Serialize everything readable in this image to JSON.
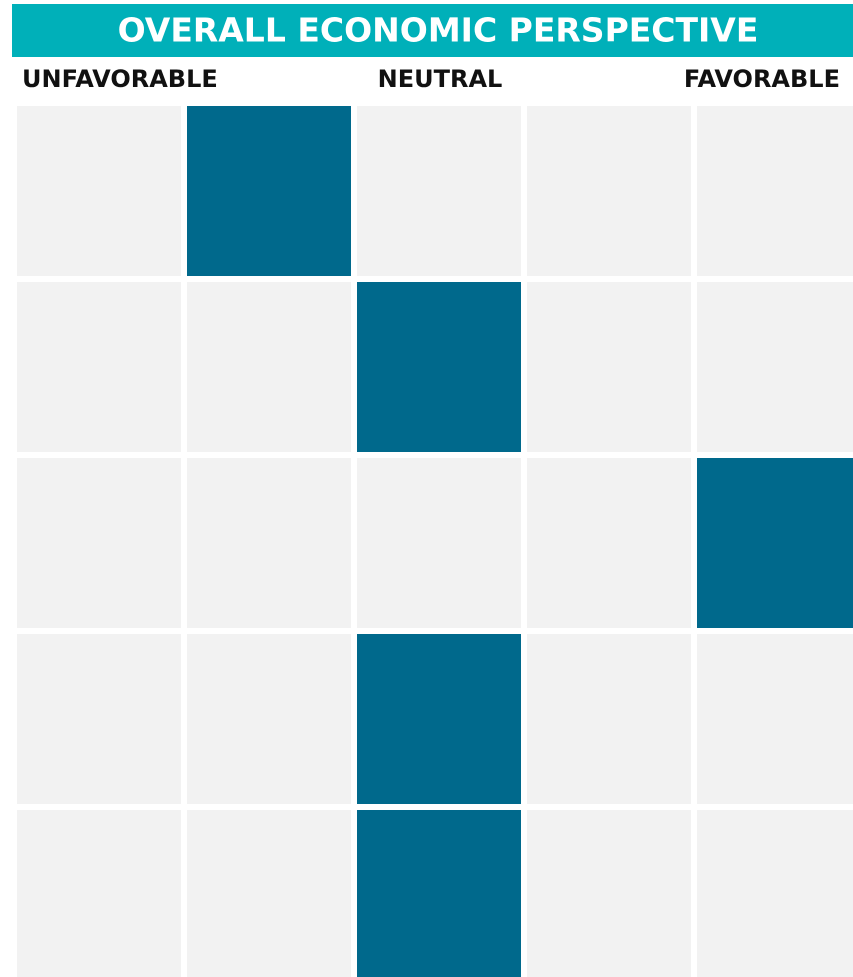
{
  "title": "OVERALL ECONOMIC PERSPECTIVE",
  "scale_labels": [
    "UNFAVORABLE",
    "NEUTRAL",
    "FAVORABLE"
  ],
  "selected": [
    1,
    2,
    4,
    2,
    2
  ]
}
